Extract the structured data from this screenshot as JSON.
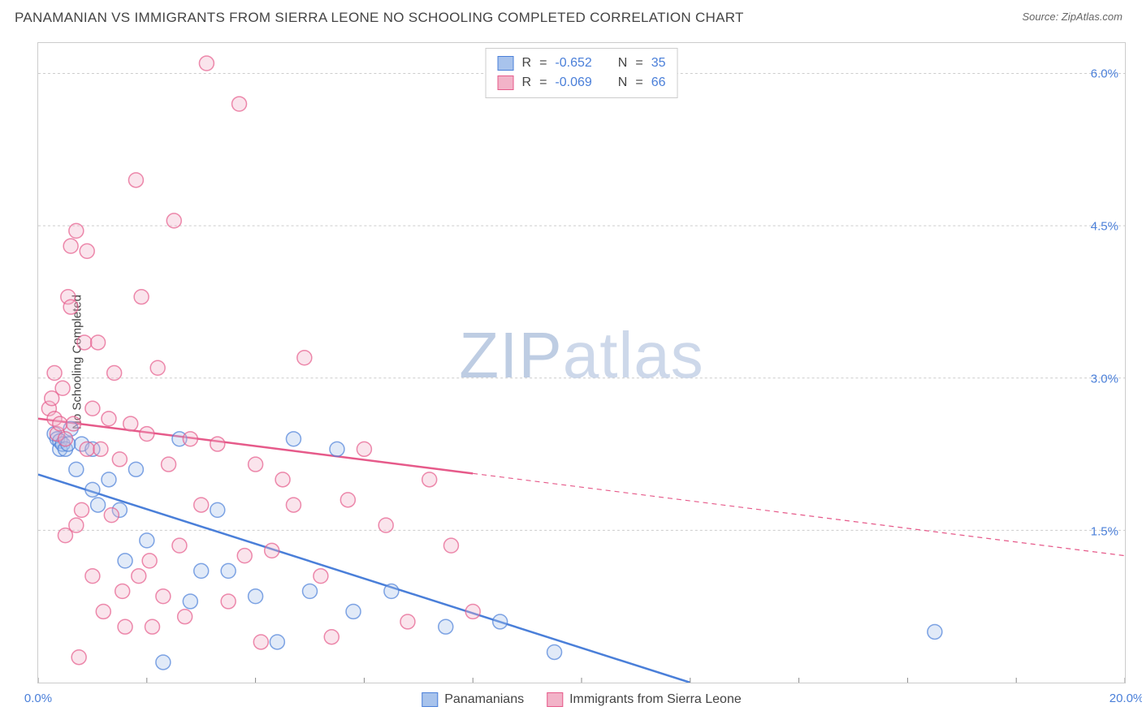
{
  "title": "PANAMANIAN VS IMMIGRANTS FROM SIERRA LEONE NO SCHOOLING COMPLETED CORRELATION CHART",
  "source_label": "Source: ",
  "source_name": "ZipAtlas.com",
  "ylabel": "No Schooling Completed",
  "watermark": {
    "part1": "ZIP",
    "part2": "atlas"
  },
  "chart": {
    "type": "scatter",
    "background_color": "#ffffff",
    "grid_color": "#cccccc",
    "grid_dash": "3 3",
    "xlim": [
      0,
      20
    ],
    "ylim": [
      0,
      6.3
    ],
    "xticks": [
      0,
      2,
      4,
      6,
      8,
      10,
      12,
      14,
      16,
      18,
      20
    ],
    "xticklabels": {
      "0": "0.0%",
      "20": "20.0%"
    },
    "ygridlines": [
      1.5,
      3.0,
      4.5,
      6.0
    ],
    "yticklabels": {
      "1.5": "1.5%",
      "3.0": "3.0%",
      "4.5": "4.5%",
      "6.0": "6.0%"
    },
    "marker_radius": 9,
    "marker_fill_opacity": 0.35,
    "marker_stroke_width": 1.5,
    "series": [
      {
        "name": "Panamanians",
        "color": "#4a7fd9",
        "fill_color": "#a8c3ec",
        "R": "-0.652",
        "N": "35",
        "points": [
          [
            0.3,
            2.45
          ],
          [
            0.35,
            2.4
          ],
          [
            0.4,
            2.38
          ],
          [
            0.4,
            2.3
          ],
          [
            0.45,
            2.35
          ],
          [
            0.5,
            2.3
          ],
          [
            0.55,
            2.35
          ],
          [
            0.6,
            2.5
          ],
          [
            0.7,
            2.1
          ],
          [
            0.8,
            2.35
          ],
          [
            1.0,
            1.9
          ],
          [
            1.0,
            2.3
          ],
          [
            1.1,
            1.75
          ],
          [
            1.3,
            2.0
          ],
          [
            1.5,
            1.7
          ],
          [
            1.6,
            1.2
          ],
          [
            1.8,
            2.1
          ],
          [
            2.0,
            1.4
          ],
          [
            2.3,
            0.2
          ],
          [
            2.6,
            2.4
          ],
          [
            2.8,
            0.8
          ],
          [
            3.0,
            1.1
          ],
          [
            3.3,
            1.7
          ],
          [
            3.5,
            1.1
          ],
          [
            4.0,
            0.85
          ],
          [
            4.4,
            0.4
          ],
          [
            4.7,
            2.4
          ],
          [
            5.0,
            0.9
          ],
          [
            5.5,
            2.3
          ],
          [
            5.8,
            0.7
          ],
          [
            6.5,
            0.9
          ],
          [
            7.5,
            0.55
          ],
          [
            8.5,
            0.6
          ],
          [
            9.5,
            0.3
          ],
          [
            16.5,
            0.5
          ]
        ],
        "trend": {
          "x1": 0,
          "y1": 2.05,
          "x2": 12,
          "y2": 0.0,
          "solid_until_x": 12
        }
      },
      {
        "name": "Immigrants from Sierra Leone",
        "color": "#e65a8a",
        "fill_color": "#f2b3c8",
        "R": "-0.069",
        "N": "66",
        "points": [
          [
            0.2,
            2.7
          ],
          [
            0.25,
            2.8
          ],
          [
            0.3,
            2.6
          ],
          [
            0.3,
            3.05
          ],
          [
            0.35,
            2.45
          ],
          [
            0.4,
            2.55
          ],
          [
            0.45,
            2.9
          ],
          [
            0.5,
            2.4
          ],
          [
            0.5,
            1.45
          ],
          [
            0.55,
            3.8
          ],
          [
            0.6,
            4.3
          ],
          [
            0.6,
            3.7
          ],
          [
            0.65,
            2.55
          ],
          [
            0.7,
            1.55
          ],
          [
            0.7,
            4.45
          ],
          [
            0.75,
            0.25
          ],
          [
            0.8,
            1.7
          ],
          [
            0.85,
            3.35
          ],
          [
            0.9,
            2.3
          ],
          [
            0.9,
            4.25
          ],
          [
            1.0,
            2.7
          ],
          [
            1.0,
            1.05
          ],
          [
            1.1,
            3.35
          ],
          [
            1.15,
            2.3
          ],
          [
            1.2,
            0.7
          ],
          [
            1.3,
            2.6
          ],
          [
            1.35,
            1.65
          ],
          [
            1.4,
            3.05
          ],
          [
            1.5,
            2.2
          ],
          [
            1.55,
            0.9
          ],
          [
            1.6,
            0.55
          ],
          [
            1.7,
            2.55
          ],
          [
            1.8,
            4.95
          ],
          [
            1.85,
            1.05
          ],
          [
            1.9,
            3.8
          ],
          [
            2.0,
            2.45
          ],
          [
            2.05,
            1.2
          ],
          [
            2.1,
            0.55
          ],
          [
            2.2,
            3.1
          ],
          [
            2.3,
            0.85
          ],
          [
            2.4,
            2.15
          ],
          [
            2.5,
            4.55
          ],
          [
            2.6,
            1.35
          ],
          [
            2.7,
            0.65
          ],
          [
            2.8,
            2.4
          ],
          [
            3.0,
            1.75
          ],
          [
            3.1,
            6.1
          ],
          [
            3.3,
            2.35
          ],
          [
            3.5,
            0.8
          ],
          [
            3.7,
            5.7
          ],
          [
            3.8,
            1.25
          ],
          [
            4.0,
            2.15
          ],
          [
            4.1,
            0.4
          ],
          [
            4.3,
            1.3
          ],
          [
            4.5,
            2.0
          ],
          [
            4.7,
            1.75
          ],
          [
            4.9,
            3.2
          ],
          [
            5.2,
            1.05
          ],
          [
            5.4,
            0.45
          ],
          [
            5.7,
            1.8
          ],
          [
            6.0,
            2.3
          ],
          [
            6.4,
            1.55
          ],
          [
            6.8,
            0.6
          ],
          [
            7.2,
            2.0
          ],
          [
            7.6,
            1.35
          ],
          [
            8.0,
            0.7
          ]
        ],
        "trend": {
          "x1": 0,
          "y1": 2.6,
          "x2": 20,
          "y2": 1.25,
          "solid_until_x": 8
        }
      }
    ],
    "axis_color": "#cccccc",
    "tick_color": "#888888",
    "tick_len": 6,
    "label_color": "#4a7fd9",
    "label_fontsize": 15,
    "title_fontsize": 17,
    "title_color": "#444444"
  },
  "stats_legend": {
    "r_label": "R",
    "n_label": "N",
    "eq": "="
  }
}
